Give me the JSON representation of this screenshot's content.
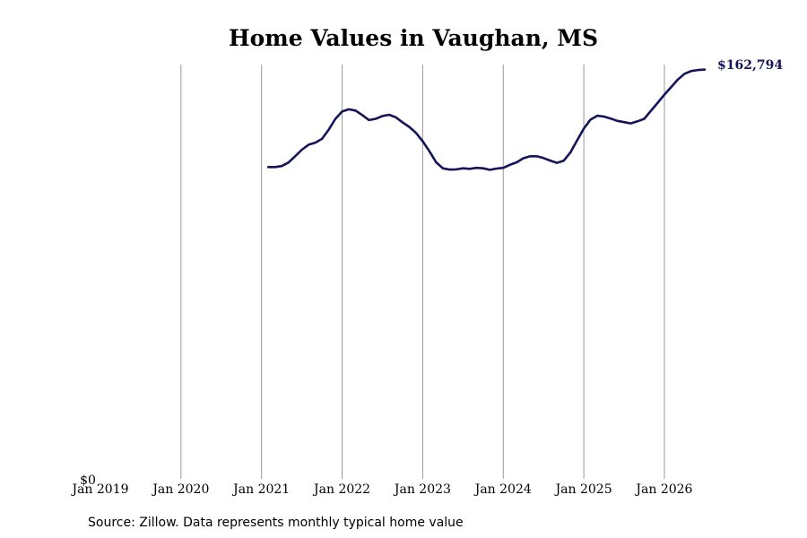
{
  "chart_data": {
    "type": "line",
    "title": "Home Values in Vaughan, MS",
    "x_tick_labels": [
      "Jan 2019",
      "Jan 2020",
      "Jan 2021",
      "Jan 2022",
      "Jan 2023",
      "Jan 2024",
      "Jan 2025",
      "Jan 2026"
    ],
    "y_tick_label": "$0",
    "ylim": [
      0,
      163000
    ],
    "grid": "vertical lines at January of each year",
    "line_color": "#14145a",
    "grid_color": "#999999",
    "end_label": "$162,794",
    "source": "Source: Zillow. Data represents monthly typical home value",
    "series": [
      {
        "x": [
          "2021-02",
          "2021-03",
          "2021-04",
          "2021-05",
          "2021-06",
          "2021-07",
          "2021-08",
          "2021-09",
          "2021-10",
          "2021-11",
          "2021-12",
          "2022-01",
          "2022-02",
          "2022-03",
          "2022-04",
          "2022-05",
          "2022-06",
          "2022-07",
          "2022-08",
          "2022-09",
          "2022-10",
          "2022-11",
          "2022-12",
          "2023-01",
          "2023-02",
          "2023-03",
          "2023-04",
          "2023-05",
          "2023-06",
          "2023-07",
          "2023-08",
          "2023-09",
          "2023-10",
          "2023-11",
          "2023-12",
          "2024-01",
          "2024-02",
          "2024-03",
          "2024-04",
          "2024-05",
          "2024-06",
          "2024-07",
          "2024-08",
          "2024-09",
          "2024-10",
          "2024-11",
          "2024-12",
          "2025-01",
          "2025-02",
          "2025-03",
          "2025-04",
          "2025-05",
          "2025-06",
          "2025-07",
          "2025-08",
          "2025-09",
          "2025-10",
          "2025-11",
          "2025-12",
          "2026-01",
          "2026-02",
          "2026-03",
          "2026-04",
          "2026-05",
          "2026-06",
          "2026-07"
        ],
        "y": [
          124000,
          124000,
          124400,
          125800,
          128300,
          130900,
          132900,
          133700,
          135200,
          138900,
          143200,
          146100,
          147000,
          146500,
          144700,
          142700,
          143200,
          144300,
          144800,
          143800,
          141800,
          140000,
          137600,
          134300,
          130300,
          125900,
          123500,
          123000,
          123100,
          123500,
          123300,
          123700,
          123500,
          122900,
          123400,
          123700,
          124900,
          125900,
          127500,
          128300,
          128300,
          127600,
          126600,
          125700,
          126500,
          129800,
          134600,
          139300,
          142900,
          144400,
          144100,
          143300,
          142400,
          141900,
          141400,
          142200,
          143200,
          146400,
          149600,
          152800,
          155800,
          158800,
          161100,
          162200,
          162600,
          162794
        ]
      }
    ]
  }
}
